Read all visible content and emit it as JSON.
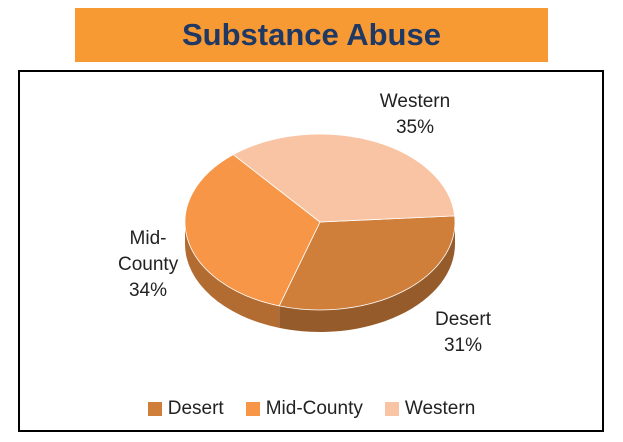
{
  "chart_data": {
    "type": "pie",
    "title": "Substance Abuse",
    "categories": [
      "Desert",
      "Mid-County",
      "Western"
    ],
    "values": [
      31,
      34,
      35
    ],
    "value_labels": [
      "31%",
      "34%",
      "35%"
    ],
    "colors": [
      "#d07f3b",
      "#f79646",
      "#f9c4a3"
    ],
    "legend": "bottom"
  }
}
